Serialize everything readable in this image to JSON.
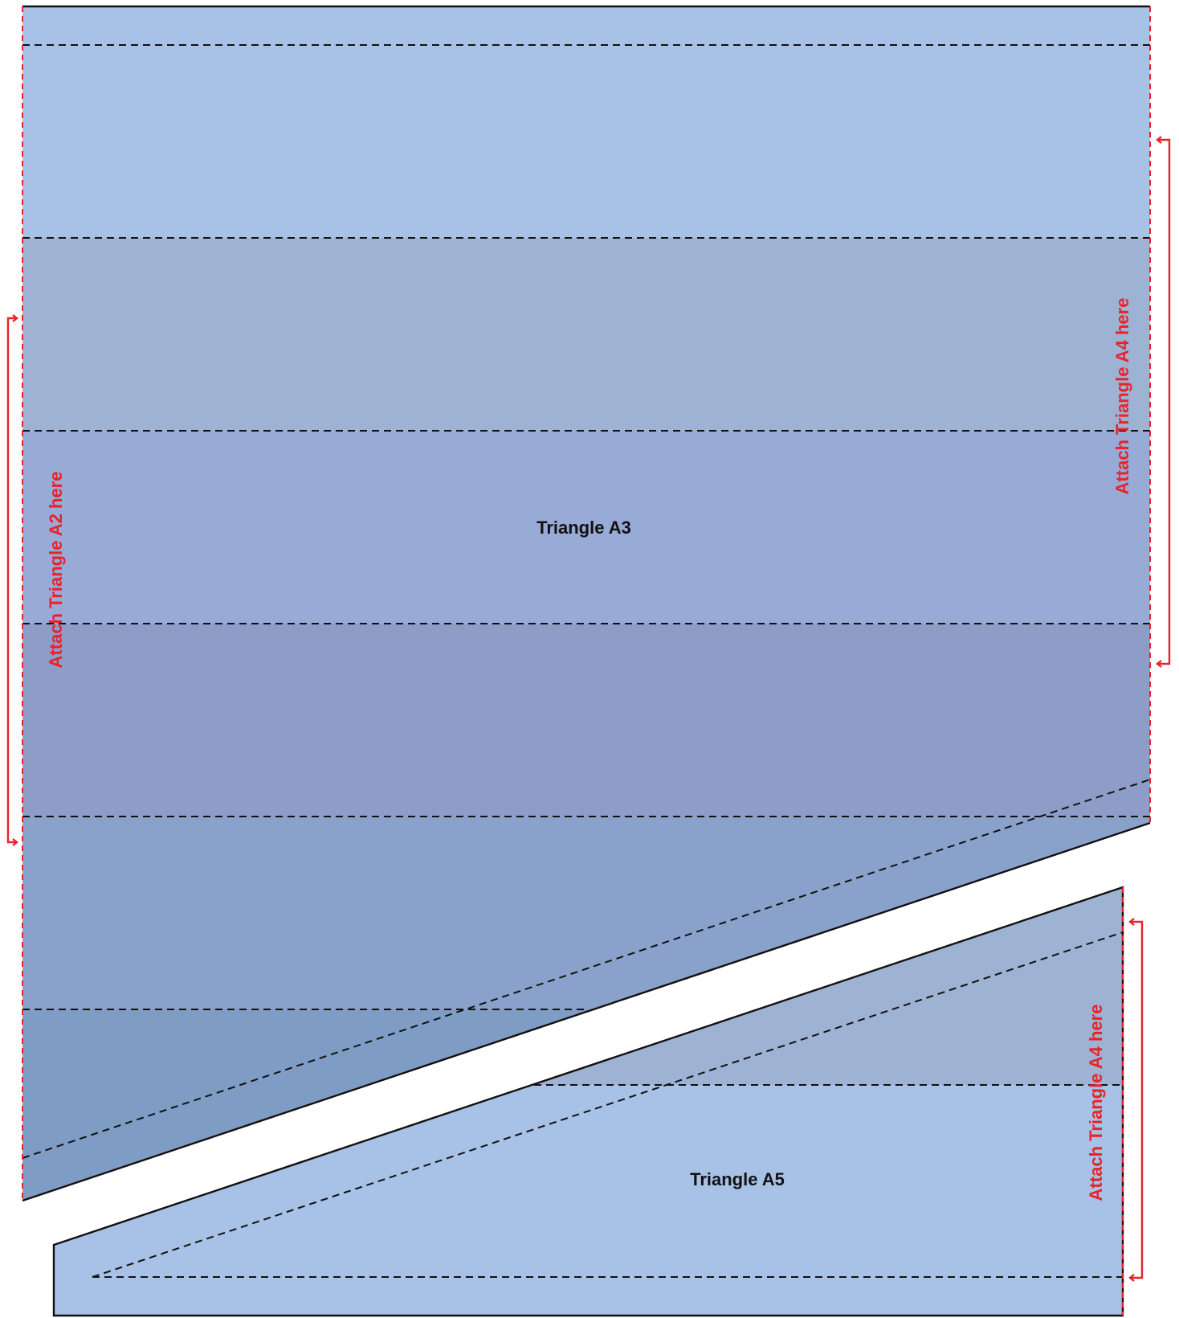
{
  "pieces": {
    "a3": {
      "label": "Triangle A3"
    },
    "a5": {
      "label": "Triangle A5"
    }
  },
  "attachments": {
    "left": {
      "label": "Attach Triangle A2 here"
    },
    "right_upper": {
      "label": "Attach Triangle A4 here"
    },
    "right_lower": {
      "label": "Attach Triangle A4 here"
    }
  },
  "colors": {
    "band_light": "#a8c1e6",
    "band_grey": "#9eb2d4",
    "band_mid": "#98aad6",
    "band_dark": "#8e9dc8",
    "band_steel": "#8aa2cb",
    "band_deep": "#7f9cc4",
    "outline": "#111111",
    "seam_red": "#e8232a"
  }
}
